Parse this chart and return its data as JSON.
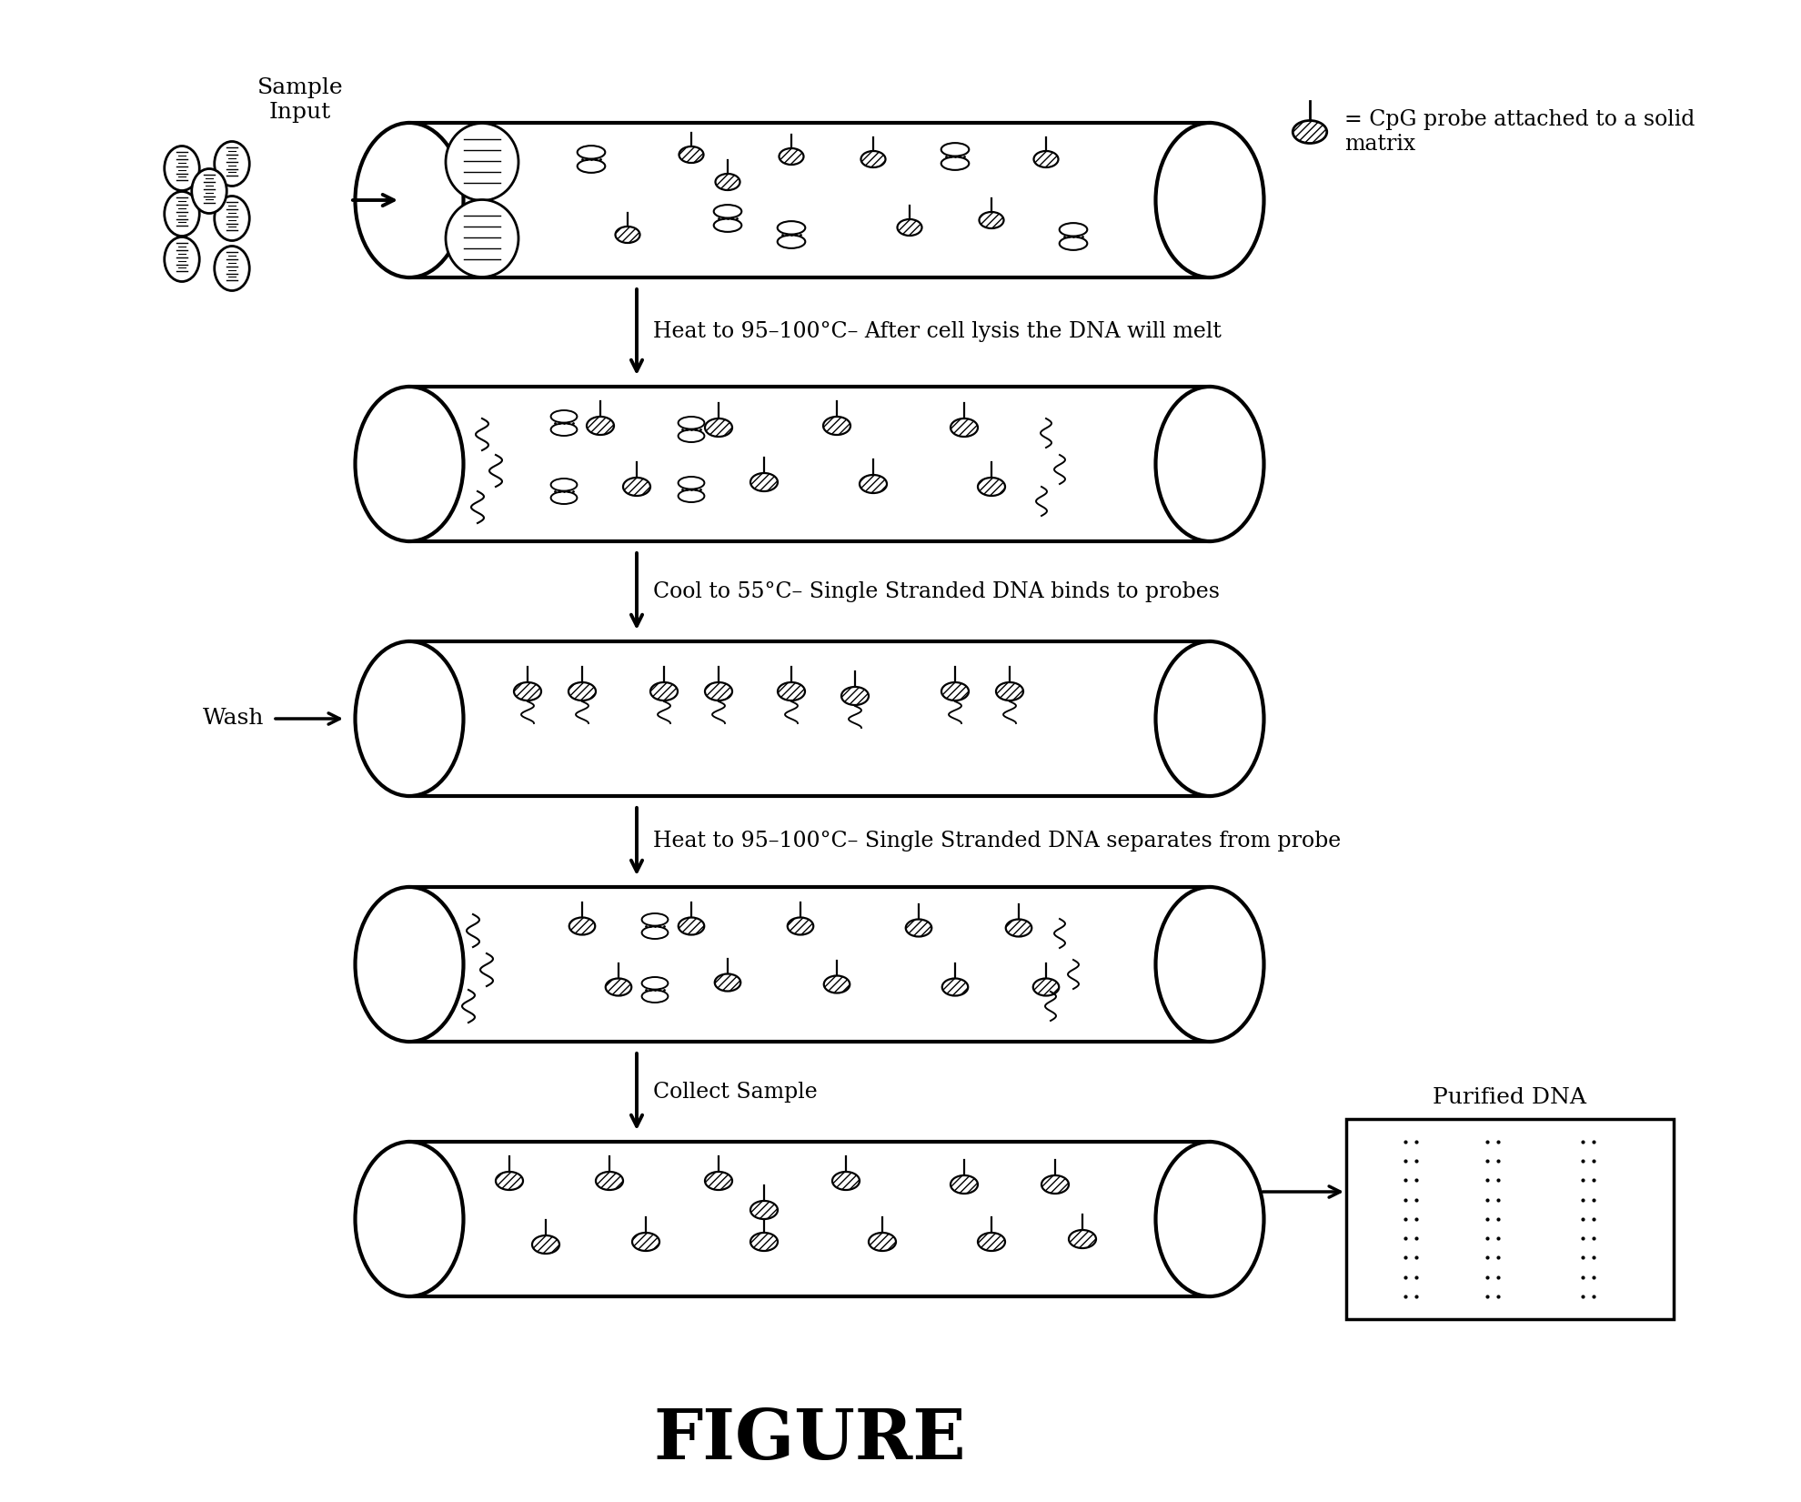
{
  "figure_title": "FIGURE",
  "legend_text": "= CpG probe attached to a solid\nmatrix",
  "step_labels": [
    "Sample\nInput",
    "Heat to 95–100°C– After cell lysis the DNA will melt",
    "Cool to 55°C– Single Stranded DNA binds to probes",
    "Heat to 95–100°C– Single Stranded DNA separates from probe",
    "Collect Sample"
  ],
  "purified_label": "Purified DNA",
  "background_color": "#ffffff"
}
